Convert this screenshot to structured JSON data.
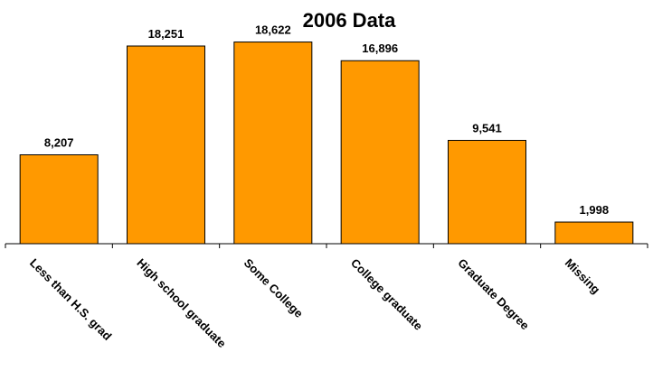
{
  "chart_data": {
    "type": "bar",
    "title": "2006 Data",
    "categories": [
      "Less than H.S. grad",
      "High school graduate",
      "Some College",
      "College graduate",
      "Graduate Degree",
      "Missing"
    ],
    "values": [
      8207,
      18251,
      18622,
      16896,
      9541,
      1998
    ],
    "value_labels": [
      "8,207",
      "18,251",
      "18,622",
      "16,896",
      "9,541",
      "1,998"
    ],
    "bar_color": "#FF9900",
    "bar_edge_color": "#000000",
    "ylim": [
      0,
      20000
    ],
    "grid": false,
    "legend": "none"
  }
}
